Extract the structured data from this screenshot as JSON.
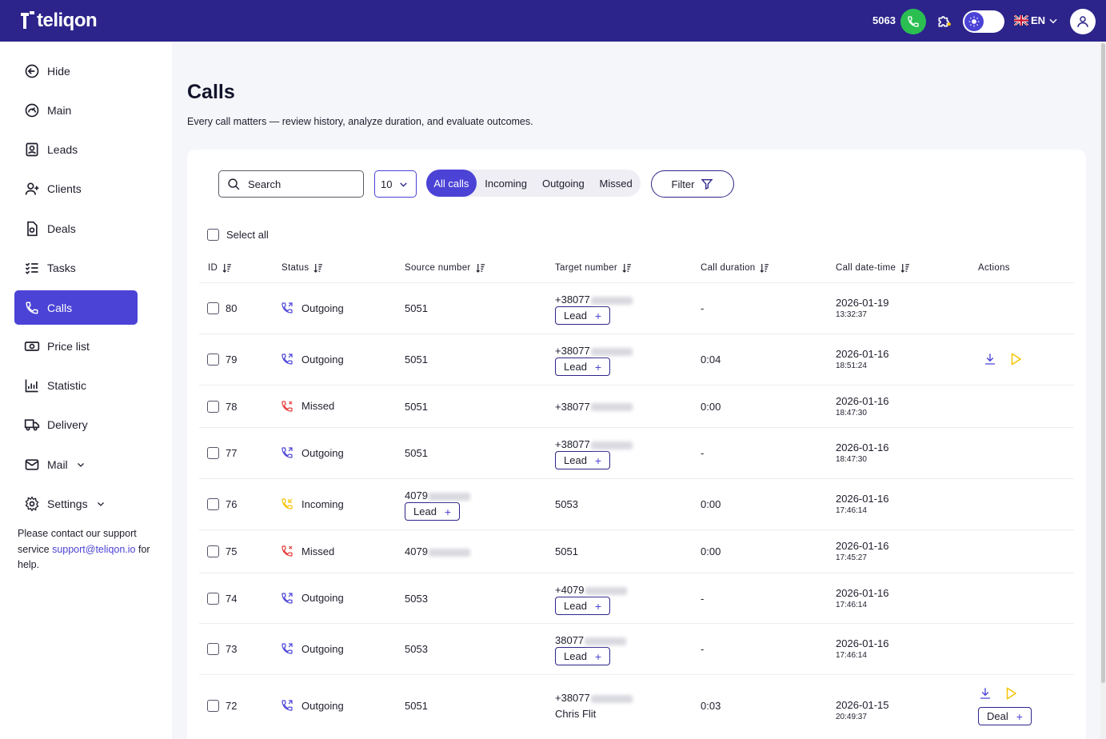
{
  "header": {
    "brand": "teliqon",
    "extension": "5063",
    "language": "EN"
  },
  "sidebar": {
    "items": [
      {
        "label": "Hide",
        "icon": "arrow-left-circle-icon"
      },
      {
        "label": "Main",
        "icon": "gauge-icon"
      },
      {
        "label": "Leads",
        "icon": "lead-card-icon"
      },
      {
        "label": "Clients",
        "icon": "user-plus-icon"
      },
      {
        "label": "Deals",
        "icon": "deal-document-icon"
      },
      {
        "label": "Tasks",
        "icon": "checklist-icon"
      },
      {
        "label": "Calls",
        "icon": "phone-icon"
      },
      {
        "label": "Price list",
        "icon": "money-icon"
      },
      {
        "label": "Statistic",
        "icon": "chart-icon"
      },
      {
        "label": "Delivery",
        "icon": "truck-icon"
      },
      {
        "label": "Mail",
        "icon": "mail-icon"
      },
      {
        "label": "Settings",
        "icon": "gear-icon"
      }
    ],
    "support_pre": "Please contact our support service ",
    "support_email": "support@teliqon.io",
    "support_post": " for help."
  },
  "page": {
    "title": "Calls",
    "subtitle": "Every call matters — review history, analyze duration, and evaluate outcomes."
  },
  "toolbar": {
    "search_placeholder": "Search",
    "per_page": "10",
    "tabs": [
      "All calls",
      "Incoming",
      "Outgoing",
      "Missed"
    ],
    "active_tab": "All calls",
    "filter_label": "Filter",
    "select_all": "Select all"
  },
  "table": {
    "columns": [
      "ID",
      "Status",
      "Source number",
      "Target number",
      "Call duration",
      "Call date-time",
      "Actions"
    ],
    "rows": [
      {
        "id": "80",
        "status": "Outgoing",
        "source": "5051",
        "source_blur": false,
        "source_tag": "",
        "target": "+38077",
        "target_blur": true,
        "target_tag": "Lead",
        "target_name": "",
        "duration": "-",
        "date": "2026-01-19",
        "time": "13:32:37",
        "actions": false,
        "action_tag": ""
      },
      {
        "id": "79",
        "status": "Outgoing",
        "source": "5051",
        "source_blur": false,
        "source_tag": "",
        "target": "+38077",
        "target_blur": true,
        "target_tag": "Lead",
        "target_name": "",
        "duration": "0:04",
        "date": "2026-01-16",
        "time": "18:51:24",
        "actions": true,
        "action_tag": ""
      },
      {
        "id": "78",
        "status": "Missed",
        "source": "5051",
        "source_blur": false,
        "source_tag": "",
        "target": "+38077",
        "target_blur": true,
        "target_tag": "",
        "target_name": "",
        "duration": "0:00",
        "date": "2026-01-16",
        "time": "18:47:30",
        "actions": false,
        "action_tag": ""
      },
      {
        "id": "77",
        "status": "Outgoing",
        "source": "5051",
        "source_blur": false,
        "source_tag": "",
        "target": "+38077",
        "target_blur": true,
        "target_tag": "Lead",
        "target_name": "",
        "duration": "-",
        "date": "2026-01-16",
        "time": "18:47:30",
        "actions": false,
        "action_tag": ""
      },
      {
        "id": "76",
        "status": "Incoming",
        "source": "4079",
        "source_blur": true,
        "source_tag": "Lead",
        "target": "5053",
        "target_blur": false,
        "target_tag": "",
        "target_name": "",
        "duration": "0:00",
        "date": "2026-01-16",
        "time": "17:46:14",
        "actions": false,
        "action_tag": ""
      },
      {
        "id": "75",
        "status": "Missed",
        "source": "4079",
        "source_blur": true,
        "source_tag": "",
        "target": "5051",
        "target_blur": false,
        "target_tag": "",
        "target_name": "",
        "duration": "0:00",
        "date": "2026-01-16",
        "time": "17:45:27",
        "actions": false,
        "action_tag": ""
      },
      {
        "id": "74",
        "status": "Outgoing",
        "source": "5053",
        "source_blur": false,
        "source_tag": "",
        "target": "+4079",
        "target_blur": true,
        "target_tag": "Lead",
        "target_name": "",
        "duration": "-",
        "date": "2026-01-16",
        "time": "17:46:14",
        "actions": false,
        "action_tag": ""
      },
      {
        "id": "73",
        "status": "Outgoing",
        "source": "5053",
        "source_blur": false,
        "source_tag": "",
        "target": "38077",
        "target_blur": true,
        "target_tag": "Lead",
        "target_name": "",
        "duration": "-",
        "date": "2026-01-16",
        "time": "17:46:14",
        "actions": false,
        "action_tag": ""
      },
      {
        "id": "72",
        "status": "Outgoing",
        "source": "5051",
        "source_blur": false,
        "source_tag": "",
        "target": "+38077",
        "target_blur": true,
        "target_tag": "",
        "target_name": "Chris Flit",
        "duration": "0:03",
        "date": "2026-01-15",
        "time": "20:49:37",
        "actions": true,
        "action_tag": "Deal"
      }
    ]
  },
  "colors": {
    "header_bg": "#2c248a",
    "accent": "#4b43d6",
    "outgoing": "#4b43d6",
    "missed": "#e53935",
    "incoming": "#f5c400",
    "call_green": "#2bbf52"
  }
}
